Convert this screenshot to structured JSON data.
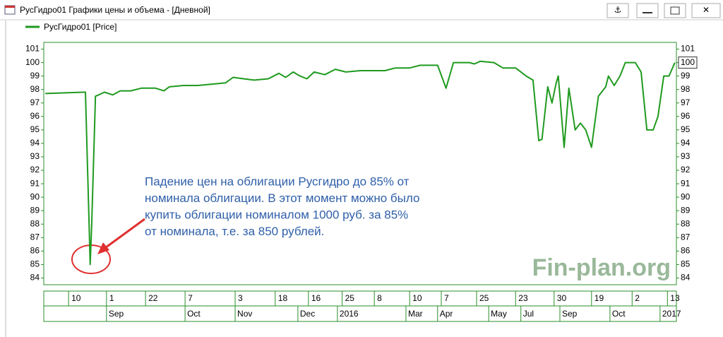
{
  "window": {
    "title": "РусГидро01 Графики цены и объема - [Дневной]"
  },
  "chart_data": {
    "type": "line",
    "x": [
      0.3,
      7.5,
      7.9,
      8.6,
      8.8,
      9.1,
      9.8,
      10.4,
      11.5,
      13.1,
      14.5,
      16.5,
      18.5,
      21.2,
      22.8,
      23.8,
      26.5,
      29.2,
      31.9,
      34.5,
      35.9,
      37.9,
      39.9,
      42.6,
      44.6,
      45.9,
      47.3,
      48.6,
      49.9,
      51.3,
      53.3,
      55.3,
      57.3,
      60.0,
      64.7,
      66.7,
      69.4,
      71.4,
      74.7,
      76.3,
      77.7,
      80.7,
      81.7,
      82.8,
      85.4,
      87.1,
      89.5,
      91.5,
      92.8,
      93.9,
      94.5,
      95.6,
      96.4,
      97.2,
      97.6,
      98.7,
      99.6,
      100.8,
      101.8,
      102.8,
      103.9,
      105.2,
      106.6,
      107.1,
      108.2,
      109.3,
      110.3,
      112.2,
      113.3,
      114.4,
      115.6,
      116.5,
      117.6,
      118.6,
      119.7
    ],
    "series": [
      {
        "name": "РусГидро01 [Price]",
        "color": "#1f9a1f",
        "values": [
          97.7,
          97.8,
          97.8,
          88,
          85,
          88,
          97.5,
          97.6,
          97.8,
          97.6,
          97.9,
          97.9,
          98.1,
          98.1,
          97.9,
          98.2,
          98.3,
          98.3,
          98.4,
          98.5,
          98.9,
          98.8,
          98.7,
          98.8,
          99.2,
          98.9,
          99.3,
          99.0,
          98.8,
          99.3,
          99.1,
          99.5,
          99.3,
          99.4,
          99.4,
          99.6,
          99.6,
          99.8,
          99.8,
          98.1,
          100,
          100,
          99.9,
          100.1,
          100,
          99.6,
          99.6,
          99,
          98.7,
          94.2,
          94.3,
          98.2,
          97,
          98.5,
          99,
          93.7,
          98.1,
          95,
          95.5,
          95,
          93.7,
          97.5,
          98.2,
          99,
          98.3,
          99,
          100,
          100,
          99.3,
          95,
          95,
          96,
          99,
          99,
          100
        ]
      }
    ],
    "xlim": [
      0,
      120
    ],
    "xticks": [
      {
        "value": 4.7,
        "label": "10"
      },
      {
        "value": 11.9,
        "label": "1"
      },
      {
        "value": 19.3,
        "label": "22"
      },
      {
        "value": 26.8,
        "label": "7"
      },
      {
        "value": 36.3,
        "label": "3"
      },
      {
        "value": 43.9,
        "label": "18"
      },
      {
        "value": 50.2,
        "label": "16"
      },
      {
        "value": 56.6,
        "label": "25"
      },
      {
        "value": 62.7,
        "label": "8"
      },
      {
        "value": 69.4,
        "label": "10"
      },
      {
        "value": 75.4,
        "label": "7"
      },
      {
        "value": 82.1,
        "label": "25"
      },
      {
        "value": 89.5,
        "label": "23"
      },
      {
        "value": 96.8,
        "label": "30"
      },
      {
        "value": 103.9,
        "label": "19"
      },
      {
        "value": 111.6,
        "label": "2"
      },
      {
        "value": 118.3,
        "label": "13"
      }
    ],
    "xticks_months": [
      {
        "value": 11.9,
        "label": "Sep"
      },
      {
        "value": 26.8,
        "label": "Oct"
      },
      {
        "value": 36.3,
        "label": "Nov"
      },
      {
        "value": 48.2,
        "label": "Dec"
      },
      {
        "value": 55.7,
        "label": "2016"
      },
      {
        "value": 68.7,
        "label": "Mar"
      },
      {
        "value": 74.7,
        "label": "Apr"
      },
      {
        "value": 84.4,
        "label": "May"
      },
      {
        "value": 90.5,
        "label": "Jul"
      },
      {
        "value": 97.9,
        "label": "Sep"
      },
      {
        "value": 107.4,
        "label": "Oct"
      },
      {
        "value": 116.9,
        "label": "2017"
      }
    ],
    "ylim": [
      83.5,
      101.5
    ],
    "yticks": [
      84,
      85,
      86,
      87,
      88,
      89,
      90,
      91,
      92,
      93,
      94,
      95,
      96,
      97,
      98,
      99,
      100,
      101
    ],
    "y2lim": [
      83.5,
      101.5
    ],
    "y2ticks": [
      84,
      85,
      86,
      87,
      88,
      89,
      90,
      91,
      92,
      93,
      94,
      95,
      96,
      97,
      98,
      99,
      100,
      101
    ],
    "annotation": [
      "Падение цен на облигации Русгидро до 85% от",
      "номинала облигации. В этот момент можно было",
      "купить облигации номиналом 1000 руб. за 85%",
      "от номинала, т.е. за 850 рублей."
    ],
    "watermark": "Fin-plan.org"
  }
}
